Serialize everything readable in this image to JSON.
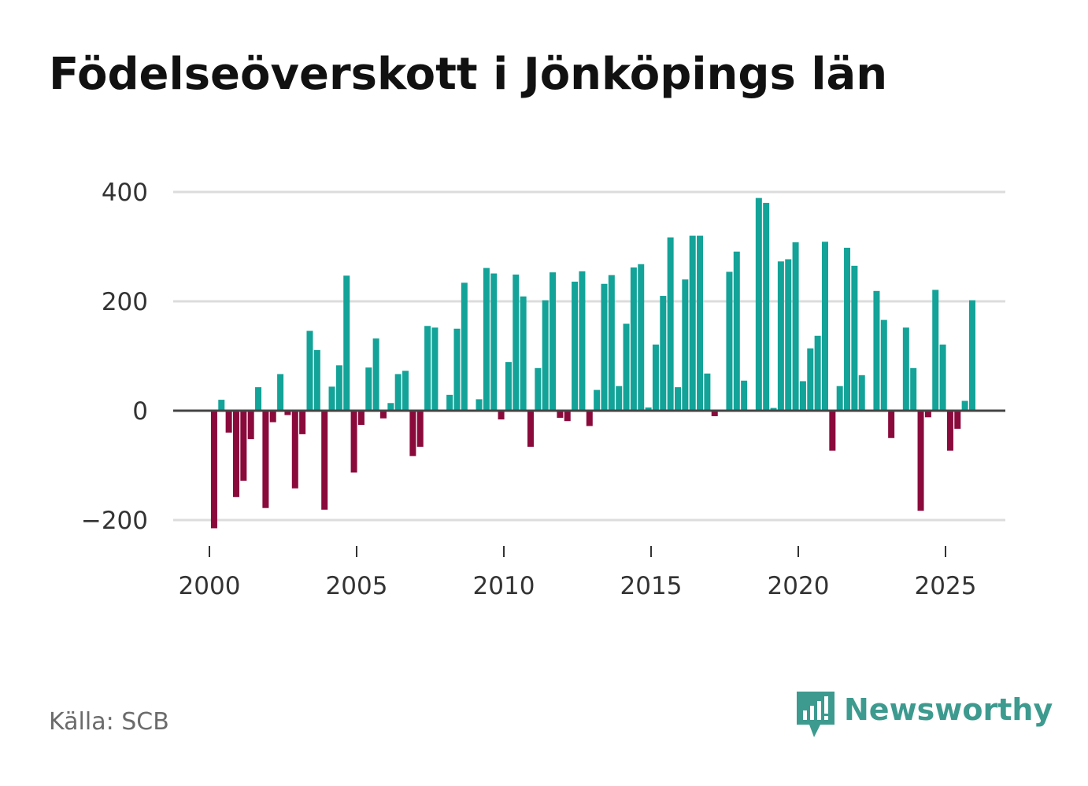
{
  "title": "Födelseöverskott i Jönköpings län",
  "source": "Källa: SCB",
  "brand": {
    "name": "Newsworthy",
    "icon": "newsworthy-logo-icon"
  },
  "colors": {
    "positive": "#13a398",
    "negative": "#8a0a3c",
    "grid": "#dcdcdc",
    "zero": "#444444",
    "brand": "#3d9a8f"
  },
  "chart_data": {
    "type": "bar",
    "title": "Födelseöverskott i Jönköpings län",
    "xlabel": "",
    "ylabel": "",
    "x_ticks": [
      2000,
      2005,
      2010,
      2015,
      2020,
      2025
    ],
    "y_ticks": [
      -200,
      0,
      200,
      400
    ],
    "y_tick_labels": [
      "−200",
      "0",
      "200",
      "400"
    ],
    "ylim": [
      -260,
      440
    ],
    "xlim": [
      1999.5,
      2027.5
    ],
    "grid": true,
    "start": "2000Q1",
    "frequency": "quarterly",
    "values": [
      -215,
      20,
      -40,
      -158,
      -128,
      -52,
      43,
      -178,
      -21,
      67,
      -8,
      -142,
      -43,
      146,
      111,
      -181,
      44,
      83,
      247,
      -113,
      -26,
      79,
      132,
      -14,
      14,
      67,
      73,
      -83,
      -66,
      155,
      152,
      1,
      29,
      150,
      234,
      1,
      21,
      261,
      251,
      -16,
      89,
      249,
      209,
      -66,
      78,
      202,
      253,
      -13,
      -19,
      236,
      255,
      -28,
      38,
      232,
      248,
      45,
      159,
      262,
      268,
      6,
      121,
      210,
      317,
      43,
      240,
      320,
      320,
      68,
      -10,
      1,
      254,
      291,
      55,
      1,
      389,
      380,
      5,
      273,
      277,
      308,
      54,
      114,
      137,
      309,
      -73,
      45,
      298,
      265,
      65,
      1,
      219,
      166,
      -50,
      1,
      152,
      78,
      -183,
      -12,
      221,
      121,
      -73,
      -33,
      18,
      202
    ]
  }
}
